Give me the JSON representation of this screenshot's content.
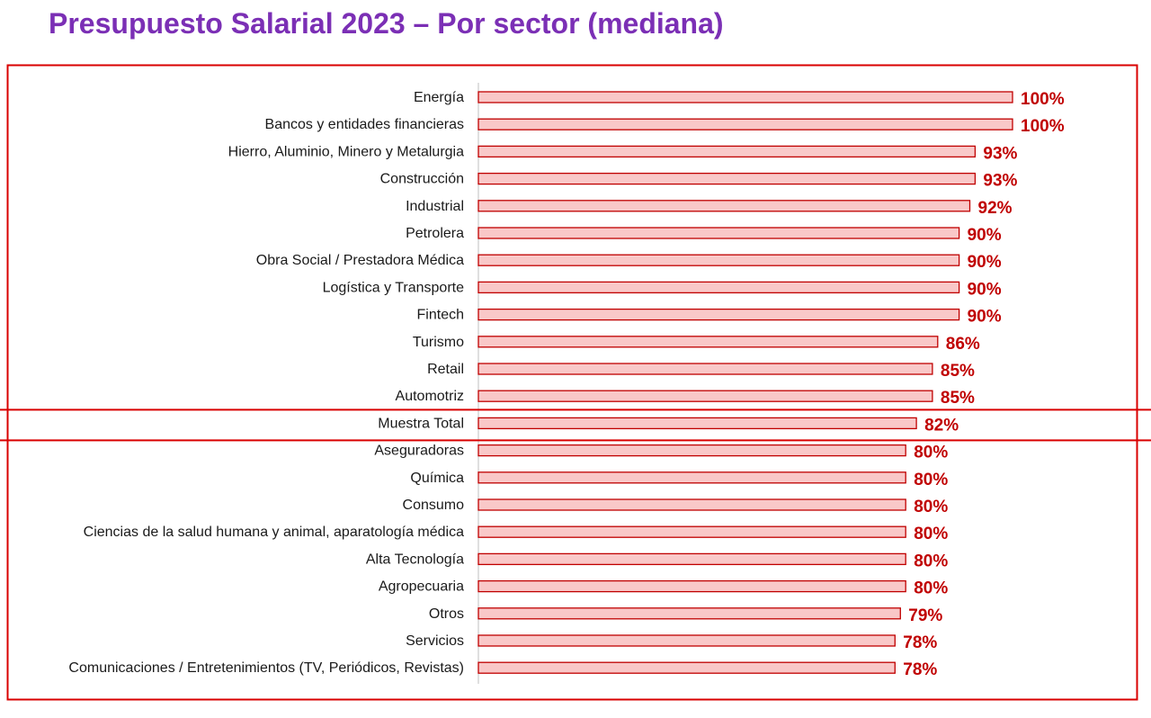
{
  "chart_data": {
    "type": "bar",
    "orientation": "horizontal",
    "title": "Presupuesto Salarial 2023 – Por sector (mediana)",
    "categories": [
      "Energía",
      "Bancos y entidades financieras",
      "Hierro, Aluminio, Minero y Metalurgia",
      "Construcción",
      "Industrial",
      "Petrolera",
      "Obra Social / Prestadora Médica",
      "Logística y Transporte",
      "Fintech",
      "Turismo",
      "Retail",
      "Automotriz",
      "Muestra Total",
      "Aseguradoras",
      "Química",
      "Consumo",
      "Ciencias de la salud humana y animal, aparatología médica",
      "Alta Tecnología",
      "Agropecuaria",
      "Otros",
      "Servicios",
      "Comunicaciones / Entretenimientos (TV, Periódicos, Revistas)"
    ],
    "values": [
      100,
      100,
      93,
      93,
      92,
      90,
      90,
      90,
      90,
      86,
      85,
      85,
      82,
      80,
      80,
      80,
      80,
      80,
      80,
      79,
      78,
      78
    ],
    "value_labels": [
      "100%",
      "100%",
      "93%",
      "93%",
      "92%",
      "90%",
      "90%",
      "90%",
      "90%",
      "86%",
      "85%",
      "85%",
      "82%",
      "80%",
      "80%",
      "80%",
      "80%",
      "80%",
      "80%",
      "79%",
      "78%",
      "78%"
    ],
    "unit": "%",
    "highlighted_category": "Muestra Total",
    "xlim": [
      0,
      100
    ],
    "grid": false,
    "legend": "none",
    "colors": {
      "bar_fill": "#f9c8c8",
      "bar_stroke": "#c00000",
      "value_label": "#c00000",
      "title": "#7b2fb5",
      "frame": "#d90000",
      "axis": "#bfbfbf"
    }
  }
}
